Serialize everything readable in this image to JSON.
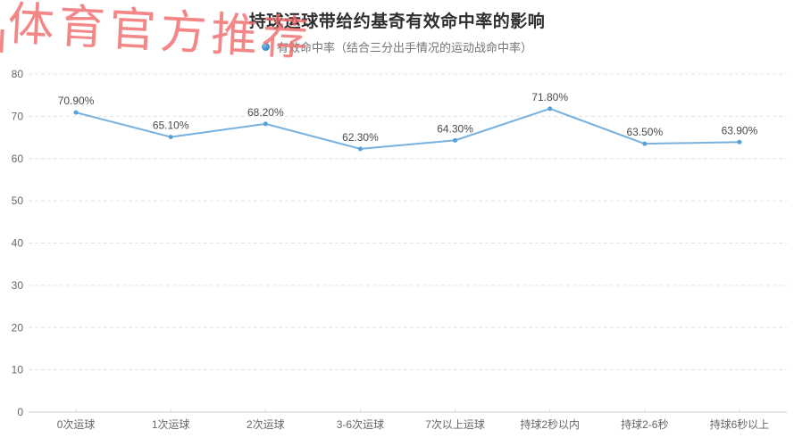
{
  "watermark": {
    "text": "体育官方推荐",
    "color": "#f16a6a"
  },
  "chart_data": {
    "type": "line",
    "title": "持球运球带给约基奇有效命中率的影响",
    "legend": {
      "label": "有效命中率（结合三分出手情况的运动战命中率）",
      "position": "top-center"
    },
    "categories": [
      "0次运球",
      "1次运球",
      "2次运球",
      "3-6次运球",
      "7次以上运球",
      "持球2秒以内",
      "持球2-6秒",
      "持球6秒以上"
    ],
    "series": [
      {
        "name": "有效命中率（结合三分出手情况的运动战命中率）",
        "values": [
          70.9,
          65.1,
          68.2,
          62.3,
          64.3,
          71.8,
          63.5,
          63.9
        ]
      }
    ],
    "data_labels": [
      "70.90%",
      "65.10%",
      "68.20%",
      "62.30%",
      "64.30%",
      "71.80%",
      "63.50%",
      "63.90%"
    ],
    "xlabel": "",
    "ylabel": "",
    "ylim": [
      0,
      80
    ],
    "y_ticks": [
      0,
      10,
      20,
      30,
      40,
      50,
      60,
      70,
      80
    ],
    "grid": "dashed-horizontal",
    "colors": {
      "line": "#78b1de",
      "marker": "#54a0d8",
      "data_label": "#4a4a4a",
      "axis_label": "#666666",
      "gridline": "#e4e4e4",
      "axis_line": "#cccccc"
    }
  }
}
